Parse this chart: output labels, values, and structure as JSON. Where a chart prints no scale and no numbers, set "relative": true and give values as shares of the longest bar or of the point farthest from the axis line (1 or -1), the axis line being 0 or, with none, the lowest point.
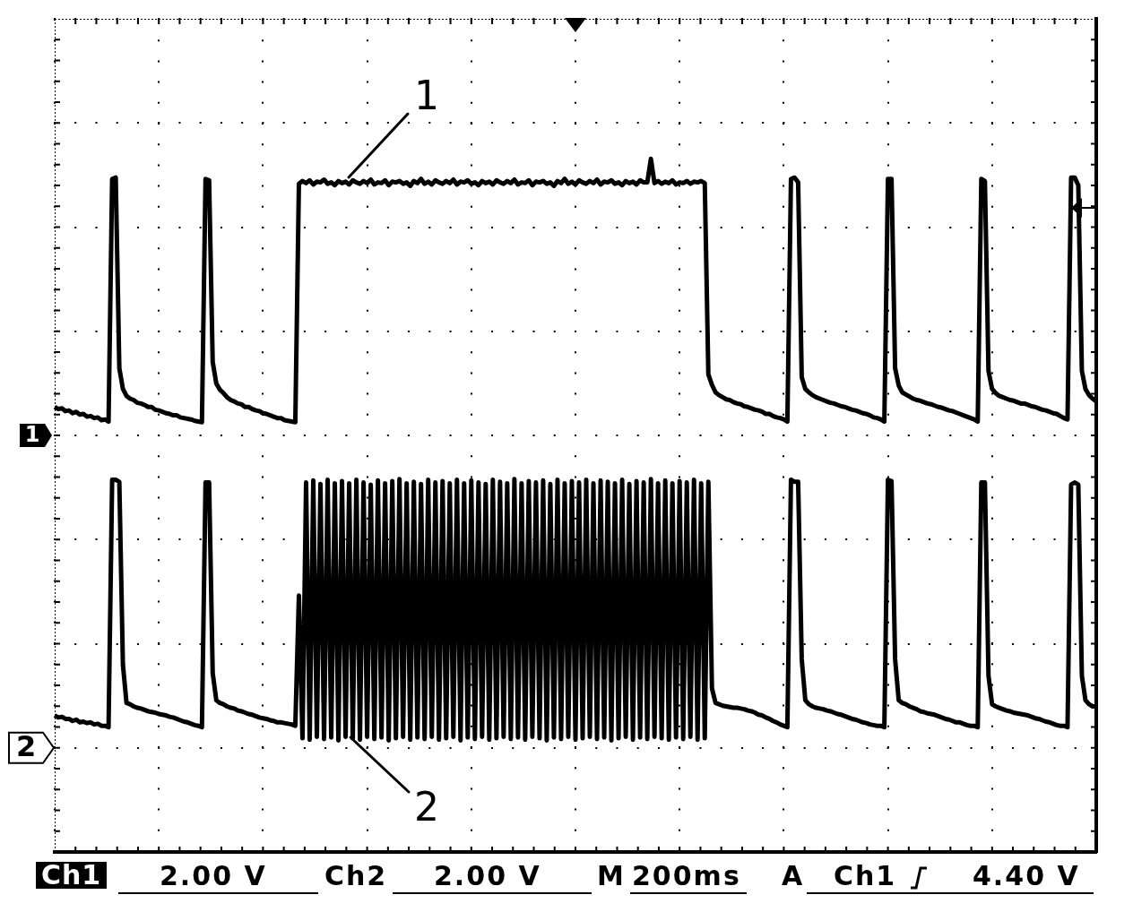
{
  "chart_data": {
    "type": "line",
    "relative": true,
    "grid": true,
    "tick_labels": false,
    "categories": [
      null,
      null,
      null,
      null,
      null,
      null,
      null,
      null,
      null,
      null,
      null,
      null,
      null,
      null,
      null,
      null,
      null,
      null,
      null,
      null,
      null,
      null,
      null,
      null,
      null,
      null,
      null,
      null,
      null,
      null,
      null,
      null,
      null,
      null,
      null,
      null,
      null,
      null,
      null,
      null,
      null,
      null,
      null,
      null,
      null,
      null,
      null,
      null,
      null,
      null,
      null,
      null,
      null,
      null,
      null,
      null,
      null,
      null,
      null,
      null,
      null,
      null,
      null,
      null,
      null,
      null,
      null,
      null,
      null,
      null,
      null,
      null,
      null,
      null,
      null,
      null,
      null,
      null,
      null,
      null,
      null,
      null,
      null,
      null,
      null,
      null,
      null,
      null,
      null,
      null,
      null,
      null,
      null,
      null,
      null,
      null,
      null,
      null,
      null,
      null,
      null,
      null,
      null,
      null,
      null,
      null,
      null,
      null,
      null,
      null,
      null,
      null,
      null,
      null,
      null,
      null,
      null,
      null,
      null,
      null,
      null,
      null,
      null,
      null,
      null,
      null,
      null,
      null,
      null,
      null,
      null,
      null,
      null,
      null,
      null,
      null,
      null,
      null,
      null,
      null,
      null,
      null,
      null,
      null,
      null,
      null,
      null,
      null,
      null,
      null,
      null,
      null,
      null,
      null,
      null,
      null,
      null,
      null,
      null,
      null,
      null,
      null,
      null,
      null,
      null,
      null,
      null,
      null,
      null,
      null,
      null,
      null,
      null,
      null,
      null,
      null,
      null,
      null,
      null,
      null,
      null,
      null,
      null,
      null,
      null,
      null,
      null,
      null,
      null,
      null,
      null,
      null,
      null,
      null,
      null,
      null,
      null,
      null,
      null,
      null,
      null,
      null,
      null,
      null,
      null,
      null,
      null,
      null,
      null,
      null,
      null,
      null,
      null,
      null,
      null,
      null,
      null,
      null,
      null,
      null,
      null,
      null,
      null,
      null,
      null,
      null,
      null,
      null,
      null,
      null,
      null,
      null,
      null,
      null,
      null,
      null,
      null,
      null,
      null,
      null,
      null,
      null,
      null,
      null,
      null,
      null,
      null,
      null,
      null,
      null,
      null,
      null,
      null,
      null,
      null,
      null,
      null,
      null,
      null,
      null,
      null,
      null,
      null,
      null,
      null,
      null,
      null,
      null,
      null,
      null,
      null,
      null,
      null,
      null,
      null,
      null,
      null,
      null,
      null,
      null,
      null,
      null,
      null,
      null,
      null,
      null,
      null,
      null,
      null,
      null,
      null
    ],
    "series": [
      {
        "color": "#000000",
        "values": [
          0.642,
          0.639,
          0.64,
          0.636,
          0.637,
          0.633,
          0.635,
          0.631,
          0.632,
          0.628,
          0.629,
          0.626,
          0.627,
          0.623,
          0.624,
          0.621,
          0.971,
          0.973,
          0.698,
          0.668,
          0.658,
          0.654,
          0.652,
          0.648,
          0.647,
          0.645,
          0.642,
          0.642,
          0.638,
          0.637,
          0.635,
          0.633,
          0.632,
          0.63,
          0.63,
          0.627,
          0.626,
          0.625,
          0.624,
          0.622,
          0.621,
          0.62,
          0.971,
          0.969,
          0.707,
          0.676,
          0.667,
          0.662,
          0.656,
          0.652,
          0.65,
          0.647,
          0.646,
          0.642,
          0.642,
          0.639,
          0.637,
          0.636,
          0.633,
          0.632,
          0.63,
          0.628,
          0.626,
          0.626,
          0.623,
          0.622,
          0.621,
          0.62,
          0.964,
          0.968,
          0.965,
          0.969,
          0.963,
          0.967,
          0.966,
          0.97,
          0.964,
          0.966,
          0.962,
          0.968,
          0.965,
          0.967,
          0.963,
          0.969,
          0.966,
          0.964,
          0.968,
          0.965,
          0.97,
          0.963,
          0.966,
          0.965,
          0.969,
          0.962,
          0.967,
          0.966,
          0.968,
          0.964,
          0.966,
          0.961,
          0.968,
          0.965,
          0.971,
          0.964,
          0.967,
          0.963,
          0.969,
          0.966,
          0.964,
          0.968,
          0.965,
          0.97,
          0.963,
          0.967,
          0.966,
          0.969,
          0.964,
          0.966,
          0.962,
          0.968,
          0.965,
          0.967,
          0.963,
          0.969,
          0.966,
          0.964,
          0.968,
          0.965,
          0.97,
          0.963,
          0.966,
          0.965,
          0.969,
          0.962,
          0.967,
          0.966,
          0.968,
          0.964,
          0.966,
          0.961,
          0.968,
          0.965,
          0.971,
          0.964,
          0.967,
          0.963,
          0.969,
          0.966,
          0.964,
          0.968,
          0.965,
          0.97,
          0.963,
          0.967,
          0.966,
          0.969,
          0.964,
          0.966,
          0.962,
          0.968,
          0.965,
          0.967,
          0.963,
          0.969,
          0.966,
          0.966,
          1,
          0.965,
          0.968,
          0.964,
          0.967,
          0.965,
          0.969,
          0.963,
          0.966,
          0.965,
          0.968,
          0.964,
          0.967,
          0.966,
          0.968,
          0.965,
          0.689,
          0.674,
          0.663,
          0.659,
          0.656,
          0.653,
          0.652,
          0.649,
          0.647,
          0.646,
          0.643,
          0.642,
          0.64,
          0.638,
          0.637,
          0.635,
          0.632,
          0.632,
          0.629,
          0.627,
          0.626,
          0.624,
          0.621,
          0.971,
          0.973,
          0.966,
          0.685,
          0.668,
          0.663,
          0.659,
          0.656,
          0.654,
          0.652,
          0.65,
          0.648,
          0.647,
          0.645,
          0.643,
          0.642,
          0.64,
          0.638,
          0.637,
          0.635,
          0.633,
          0.632,
          0.63,
          0.627,
          0.626,
          0.624,
          0.621,
          0.971,
          0.971,
          0.698,
          0.673,
          0.663,
          0.66,
          0.657,
          0.654,
          0.652,
          0.651,
          0.649,
          0.647,
          0.646,
          0.644,
          0.642,
          0.641,
          0.639,
          0.637,
          0.636,
          0.634,
          0.632,
          0.63,
          0.628,
          0.626,
          0.624,
          0.621,
          0.971,
          0.968,
          0.694,
          0.668,
          0.662,
          0.658,
          0.656,
          0.654,
          0.652,
          0.651,
          0.649,
          0.647,
          0.647,
          0.645,
          0.643,
          0.642,
          0.64,
          0.638,
          0.637,
          0.635,
          0.633,
          0.632,
          0.629,
          0.626,
          0.624,
          0.973,
          0.973,
          0.962,
          0.694,
          0.668,
          0.659,
          0.654,
          0.65
        ]
      },
      {
        "color": "#000000",
        "values": [
          0.197,
          0.194,
          0.195,
          0.192,
          0.192,
          0.189,
          0.191,
          0.187,
          0.188,
          0.186,
          0.187,
          0.184,
          0.185,
          0.182,
          0.182,
          0.18,
          0.537,
          0.537,
          0.534,
          0.27,
          0.215,
          0.213,
          0.21,
          0.208,
          0.207,
          0.205,
          0.203,
          0.202,
          0.201,
          0.199,
          0.198,
          0.197,
          0.195,
          0.194,
          0.192,
          0.19,
          0.188,
          0.187,
          0.185,
          0.183,
          0.182,
          0.18,
          0.533,
          0.533,
          0.258,
          0.219,
          0.215,
          0.213,
          0.21,
          0.208,
          0.207,
          0.204,
          0.203,
          0.201,
          0.199,
          0.198,
          0.196,
          0.194,
          0.193,
          0.192,
          0.19,
          0.189,
          0.187,
          0.187,
          0.186,
          0.185,
          0.184,
          0.182,
          0.37,
          0.164,
          0.533,
          0.162,
          0.536,
          0.166,
          0.531,
          0.163,
          0.537,
          0.165,
          0.532,
          0.161,
          0.535,
          0.166,
          0.532,
          0.164,
          0.537,
          0.162,
          0.533,
          0.166,
          0.53,
          0.163,
          0.536,
          0.165,
          0.532,
          0.161,
          0.535,
          0.164,
          0.538,
          0.166,
          0.532,
          0.162,
          0.534,
          0.165,
          0.531,
          0.163,
          0.537,
          0.166,
          0.533,
          0.162,
          0.535,
          0.164,
          0.532,
          0.166,
          0.537,
          0.161,
          0.532,
          0.165,
          0.536,
          0.163,
          0.533,
          0.166,
          0.531,
          0.162,
          0.537,
          0.164,
          0.534,
          0.166,
          0.532,
          0.163,
          0.538,
          0.165,
          0.532,
          0.162,
          0.535,
          0.166,
          0.533,
          0.164,
          0.536,
          0.161,
          0.531,
          0.165,
          0.537,
          0.163,
          0.532,
          0.166,
          0.535,
          0.162,
          0.533,
          0.164,
          0.537,
          0.166,
          0.532,
          0.163,
          0.536,
          0.165,
          0.534,
          0.161,
          0.532,
          0.164,
          0.537,
          0.166,
          0.531,
          0.162,
          0.535,
          0.165,
          0.533,
          0.163,
          0.538,
          0.166,
          0.532,
          0.164,
          0.536,
          0.162,
          0.532,
          0.165,
          0.535,
          0.163,
          0.533,
          0.166,
          0.537,
          0.162,
          0.532,
          0.164,
          0.534,
          0.236,
          0.215,
          0.213,
          0.211,
          0.21,
          0.209,
          0.208,
          0.208,
          0.207,
          0.206,
          0.204,
          0.203,
          0.201,
          0.198,
          0.197,
          0.194,
          0.192,
          0.189,
          0.187,
          0.184,
          0.182,
          0.18,
          0.537,
          0.534,
          0.534,
          0.278,
          0.219,
          0.213,
          0.21,
          0.208,
          0.207,
          0.206,
          0.204,
          0.203,
          0.201,
          0.199,
          0.198,
          0.196,
          0.194,
          0.192,
          0.191,
          0.189,
          0.187,
          0.186,
          0.184,
          0.183,
          0.182,
          0.182,
          0.18,
          0.537,
          0.535,
          0.278,
          0.219,
          0.215,
          0.213,
          0.21,
          0.208,
          0.206,
          0.203,
          0.202,
          0.2,
          0.199,
          0.198,
          0.196,
          0.194,
          0.192,
          0.191,
          0.189,
          0.187,
          0.187,
          0.185,
          0.183,
          0.182,
          0.182,
          0.18,
          0.533,
          0.533,
          0.254,
          0.213,
          0.21,
          0.208,
          0.206,
          0.204,
          0.203,
          0.201,
          0.2,
          0.199,
          0.198,
          0.197,
          0.195,
          0.193,
          0.192,
          0.19,
          0.188,
          0.187,
          0.185,
          0.183,
          0.182,
          0.182,
          0.18,
          0.53,
          0.533,
          0.53,
          0.254,
          0.219,
          0.213,
          0.21,
          0.21
        ]
      }
    ],
    "annotations": [
      "1",
      "2",
      "1",
      "2",
      "Ch1",
      "2.00 V",
      "Ch2",
      "2.00 V",
      "M",
      "200ms",
      "A",
      "Ch1",
      "4.40 V"
    ]
  }
}
